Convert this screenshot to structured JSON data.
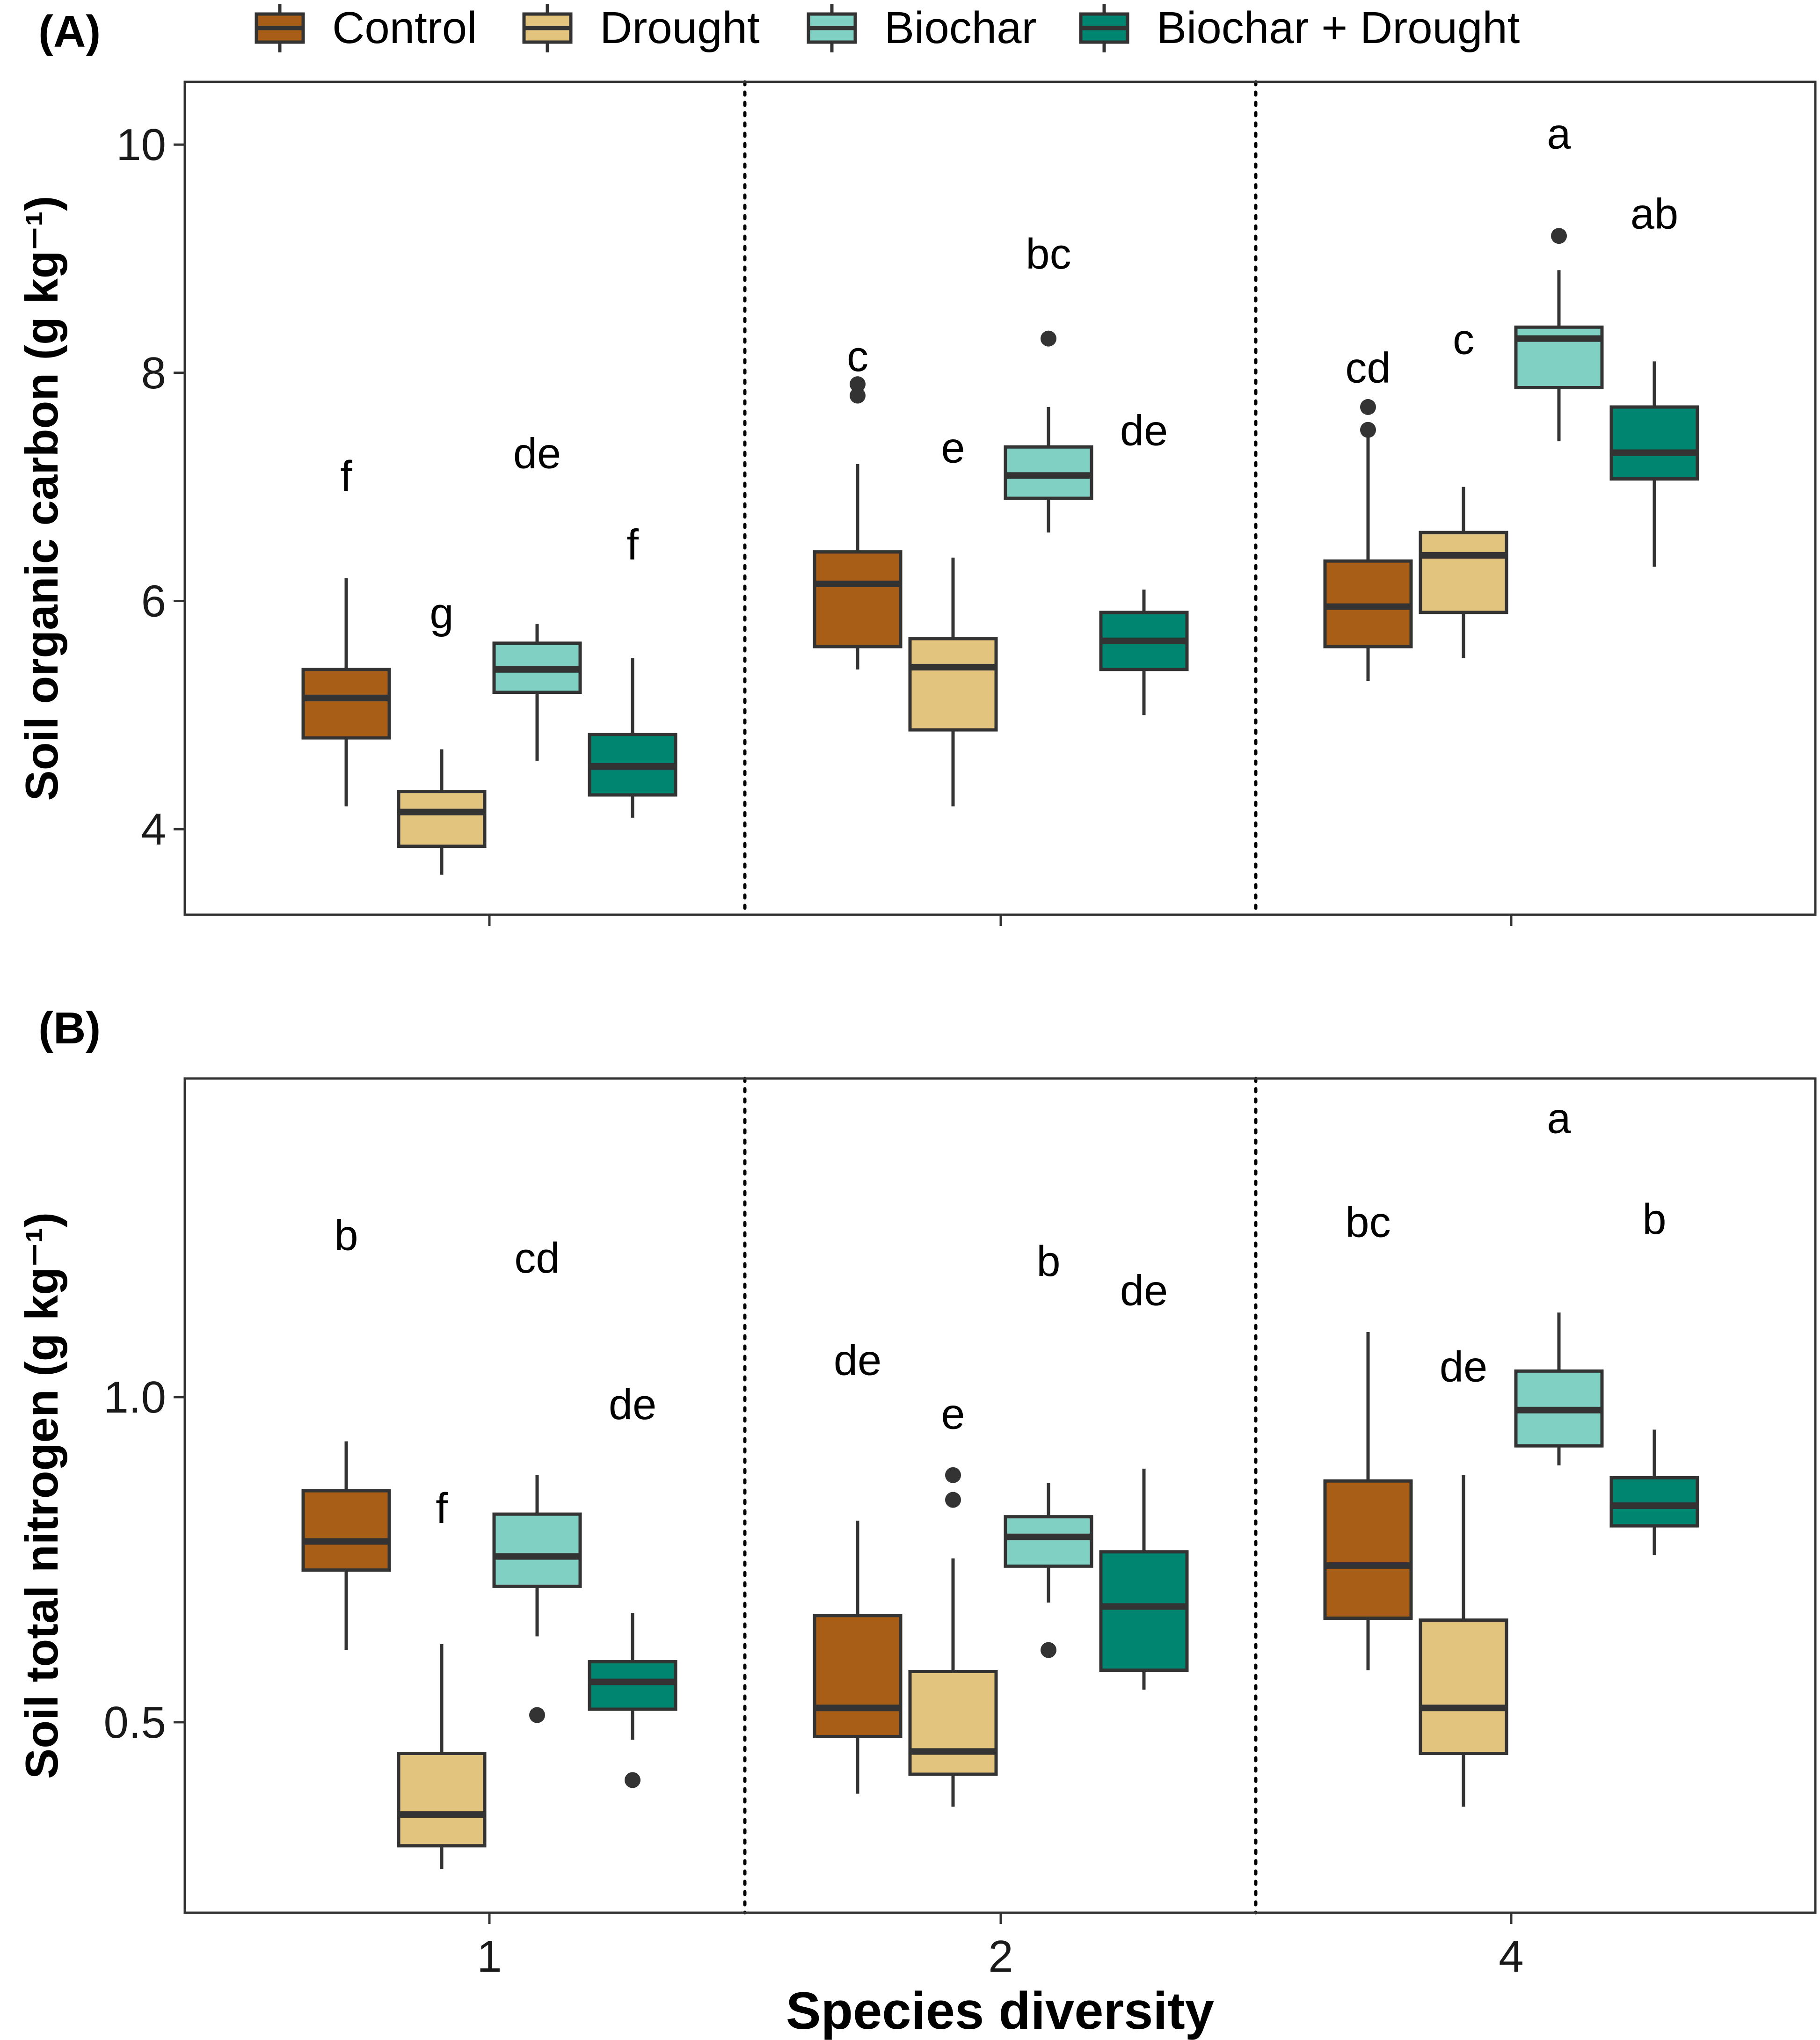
{
  "legend": {
    "items": [
      {
        "label": "Control",
        "color": "#A85E17"
      },
      {
        "label": "Drought",
        "color": "#E3C47F"
      },
      {
        "label": "Biochar",
        "color": "#80D1C3"
      },
      {
        "label": "Biochar + Drought",
        "color": "#008571"
      }
    ]
  },
  "chart_data": [
    {
      "type": "box",
      "panel_label": "(A)",
      "ylabel": "Soil organic carbon (g kg⁻¹)",
      "xlabel": "",
      "categories": [
        "1",
        "2",
        "4"
      ],
      "ylim": [
        3.25,
        10.55
      ],
      "yticks": [
        4,
        6,
        8,
        10
      ],
      "ytick_labels": [
        "4",
        "6",
        "8",
        "10"
      ],
      "series": [
        {
          "name": "Control",
          "boxes": [
            {
              "whisker_low": 4.2,
              "q1": 4.8,
              "median": 5.15,
              "q3": 5.4,
              "whisker_high": 6.2,
              "outliers": [],
              "letter": "f",
              "letter_y": 7.1
            },
            {
              "whisker_low": 5.4,
              "q1": 5.6,
              "median": 6.15,
              "q3": 6.43,
              "whisker_high": 7.2,
              "outliers": [
                7.8,
                7.9
              ],
              "letter": "c",
              "letter_y": 8.15
            },
            {
              "whisker_low": 5.3,
              "q1": 5.6,
              "median": 5.95,
              "q3": 6.35,
              "whisker_high": 7.45,
              "outliers": [
                7.5,
                7.7
              ],
              "letter": "cd",
              "letter_y": 8.05
            }
          ]
        },
        {
          "name": "Drought",
          "boxes": [
            {
              "whisker_low": 3.6,
              "q1": 3.85,
              "median": 4.15,
              "q3": 4.33,
              "whisker_high": 4.7,
              "outliers": [],
              "letter": "g",
              "letter_y": 5.9
            },
            {
              "whisker_low": 4.2,
              "q1": 4.87,
              "median": 5.42,
              "q3": 5.67,
              "whisker_high": 6.38,
              "outliers": [],
              "letter": "e",
              "letter_y": 7.35
            },
            {
              "whisker_low": 5.5,
              "q1": 5.9,
              "median": 6.4,
              "q3": 6.6,
              "whisker_high": 7.0,
              "outliers": [],
              "letter": "c",
              "letter_y": 8.3
            }
          ]
        },
        {
          "name": "Biochar",
          "boxes": [
            {
              "whisker_low": 4.6,
              "q1": 5.2,
              "median": 5.4,
              "q3": 5.63,
              "whisker_high": 5.8,
              "outliers": [],
              "letter": "de",
              "letter_y": 7.3
            },
            {
              "whisker_low": 6.6,
              "q1": 6.9,
              "median": 7.1,
              "q3": 7.35,
              "whisker_high": 7.7,
              "outliers": [
                8.3
              ],
              "letter": "bc",
              "letter_y": 9.05
            },
            {
              "whisker_low": 7.4,
              "q1": 7.87,
              "median": 8.3,
              "q3": 8.4,
              "whisker_high": 8.9,
              "outliers": [
                9.2
              ],
              "letter": "a",
              "letter_y": 10.1
            }
          ]
        },
        {
          "name": "Biochar + Drought",
          "boxes": [
            {
              "whisker_low": 4.1,
              "q1": 4.3,
              "median": 4.55,
              "q3": 4.83,
              "whisker_high": 5.5,
              "outliers": [],
              "letter": "f",
              "letter_y": 6.5
            },
            {
              "whisker_low": 5.0,
              "q1": 5.4,
              "median": 5.65,
              "q3": 5.9,
              "whisker_high": 6.1,
              "outliers": [],
              "letter": "de",
              "letter_y": 7.5
            },
            {
              "whisker_low": 6.3,
              "q1": 7.07,
              "median": 7.3,
              "q3": 7.7,
              "whisker_high": 8.1,
              "outliers": [],
              "letter": "ab",
              "letter_y": 9.4
            }
          ]
        }
      ]
    },
    {
      "type": "box",
      "panel_label": "(B)",
      "ylabel": "Soil total nitrogen (g kg⁻¹)",
      "xlabel": "Species diversity",
      "categories": [
        "1",
        "2",
        "4"
      ],
      "ylim": [
        0.207,
        1.49
      ],
      "yticks": [
        0.5,
        1.0
      ],
      "ytick_labels": [
        "0.5",
        "1.0"
      ],
      "series": [
        {
          "name": "Control",
          "boxes": [
            {
              "whisker_low": 0.611,
              "q1": 0.734,
              "median": 0.778,
              "q3": 0.856,
              "whisker_high": 0.932,
              "outliers": [],
              "letter": "b",
              "letter_y": 1.25
            },
            {
              "whisker_low": 0.39,
              "q1": 0.478,
              "median": 0.522,
              "q3": 0.664,
              "whisker_high": 0.81,
              "outliers": [],
              "letter": "de",
              "letter_y": 1.058
            },
            {
              "whisker_low": 0.58,
              "q1": 0.66,
              "median": 0.741,
              "q3": 0.871,
              "whisker_high": 1.1,
              "outliers": [],
              "letter": "bc",
              "letter_y": 1.27
            }
          ]
        },
        {
          "name": "Drought",
          "boxes": [
            {
              "whisker_low": 0.274,
              "q1": 0.31,
              "median": 0.358,
              "q3": 0.452,
              "whisker_high": 0.62,
              "outliers": [],
              "letter": "f",
              "letter_y": 0.83
            },
            {
              "whisker_low": 0.37,
              "q1": 0.42,
              "median": 0.455,
              "q3": 0.578,
              "whisker_high": 0.752,
              "outliers": [
                0.842,
                0.88
              ],
              "letter": "e",
              "letter_y": 0.975
            },
            {
              "whisker_low": 0.37,
              "q1": 0.452,
              "median": 0.522,
              "q3": 0.657,
              "whisker_high": 0.88,
              "outliers": [],
              "letter": "de",
              "letter_y": 1.048
            }
          ]
        },
        {
          "name": "Biochar",
          "boxes": [
            {
              "whisker_low": 0.632,
              "q1": 0.709,
              "median": 0.755,
              "q3": 0.82,
              "whisker_high": 0.88,
              "outliers": [
                0.511
              ],
              "letter": "cd",
              "letter_y": 1.215
            },
            {
              "whisker_low": 0.684,
              "q1": 0.74,
              "median": 0.785,
              "q3": 0.816,
              "whisker_high": 0.868,
              "outliers": [
                0.611
              ],
              "letter": "b",
              "letter_y": 1.21
            },
            {
              "whisker_low": 0.895,
              "q1": 0.925,
              "median": 0.98,
              "q3": 1.04,
              "whisker_high": 1.13,
              "outliers": [],
              "letter": "a",
              "letter_y": 1.43
            }
          ]
        },
        {
          "name": "Biochar + Drought",
          "boxes": [
            {
              "whisker_low": 0.473,
              "q1": 0.52,
              "median": 0.562,
              "q3": 0.593,
              "whisker_high": 0.668,
              "outliers": [
                0.411
              ],
              "letter": "de",
              "letter_y": 0.99
            },
            {
              "whisker_low": 0.55,
              "q1": 0.58,
              "median": 0.678,
              "q3": 0.762,
              "whisker_high": 0.89,
              "outliers": [],
              "letter": "de",
              "letter_y": 1.165
            },
            {
              "whisker_low": 0.757,
              "q1": 0.802,
              "median": 0.833,
              "q3": 0.876,
              "whisker_high": 0.95,
              "outliers": [],
              "letter": "b",
              "letter_y": 1.275
            }
          ]
        }
      ]
    }
  ]
}
